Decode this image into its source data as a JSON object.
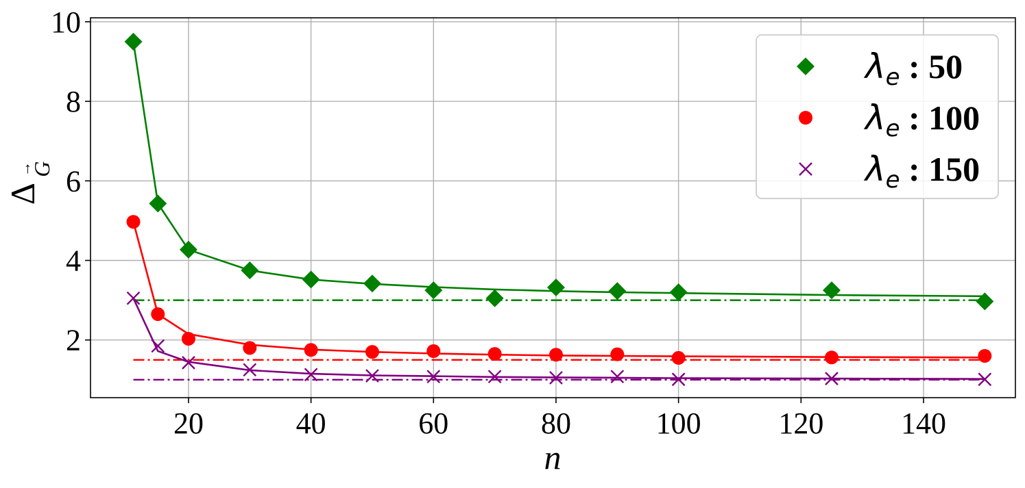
{
  "chart_data": {
    "type": "line",
    "title": "",
    "xlabel": "n",
    "ylabel_main": "Δ",
    "ylabel_sub": "G",
    "ylabel_accent": "→",
    "xlim": [
      4,
      155
    ],
    "ylim": [
      0.55,
      10.1
    ],
    "xticks": [
      20,
      40,
      60,
      80,
      100,
      120,
      140
    ],
    "yticks": [
      2,
      4,
      6,
      8,
      10
    ],
    "grid": true,
    "legend_position": "top-right",
    "series": [
      {
        "name": "λ",
        "name_sub": "e",
        "name_value": ": 50",
        "marker": "diamond",
        "color": "#008000",
        "points": {
          "x": [
            11,
            15,
            20,
            30,
            40,
            50,
            60,
            70,
            80,
            90,
            100,
            125,
            150
          ],
          "y": [
            9.5,
            5.43,
            4.27,
            3.75,
            3.52,
            3.42,
            3.25,
            3.05,
            3.32,
            3.23,
            3.2,
            3.25,
            2.97
          ]
        },
        "fit": {
          "x": [
            11,
            15,
            20,
            30,
            40,
            50,
            60,
            70,
            80,
            90,
            100,
            125,
            150
          ],
          "y": [
            9.5,
            5.43,
            4.27,
            3.75,
            3.52,
            3.41,
            3.33,
            3.27,
            3.23,
            3.2,
            3.18,
            3.13,
            3.1
          ]
        },
        "asymptote": 3.0
      },
      {
        "name": "λ",
        "name_sub": "e",
        "name_value": ": 100",
        "marker": "circle",
        "color": "#ff0000",
        "points": {
          "x": [
            11,
            15,
            20,
            30,
            40,
            50,
            60,
            70,
            80,
            90,
            100,
            125,
            150
          ],
          "y": [
            4.97,
            2.65,
            2.03,
            1.8,
            1.75,
            1.7,
            1.72,
            1.65,
            1.63,
            1.64,
            1.55,
            1.56,
            1.6
          ]
        },
        "fit": {
          "x": [
            11,
            15,
            20,
            30,
            40,
            50,
            60,
            70,
            80,
            90,
            100,
            125,
            150
          ],
          "y": [
            4.97,
            2.65,
            2.15,
            1.88,
            1.76,
            1.7,
            1.66,
            1.63,
            1.61,
            1.6,
            1.59,
            1.57,
            1.56
          ]
        },
        "asymptote": 1.5
      },
      {
        "name": "λ",
        "name_sub": "e",
        "name_value": ": 150",
        "marker": "x",
        "color": "#800080",
        "points": {
          "x": [
            11,
            15,
            20,
            30,
            40,
            50,
            60,
            70,
            80,
            90,
            100,
            125,
            150
          ],
          "y": [
            3.05,
            1.85,
            1.43,
            1.25,
            1.13,
            1.1,
            1.08,
            1.08,
            1.05,
            1.08,
            1.01,
            1.03,
            1.01
          ]
        },
        "fit": {
          "x": [
            11,
            15,
            20,
            30,
            40,
            50,
            60,
            70,
            80,
            90,
            100,
            125,
            150
          ],
          "y": [
            3.05,
            1.72,
            1.45,
            1.24,
            1.15,
            1.11,
            1.09,
            1.07,
            1.06,
            1.05,
            1.04,
            1.03,
            1.02
          ]
        },
        "asymptote": 1.0
      }
    ]
  }
}
